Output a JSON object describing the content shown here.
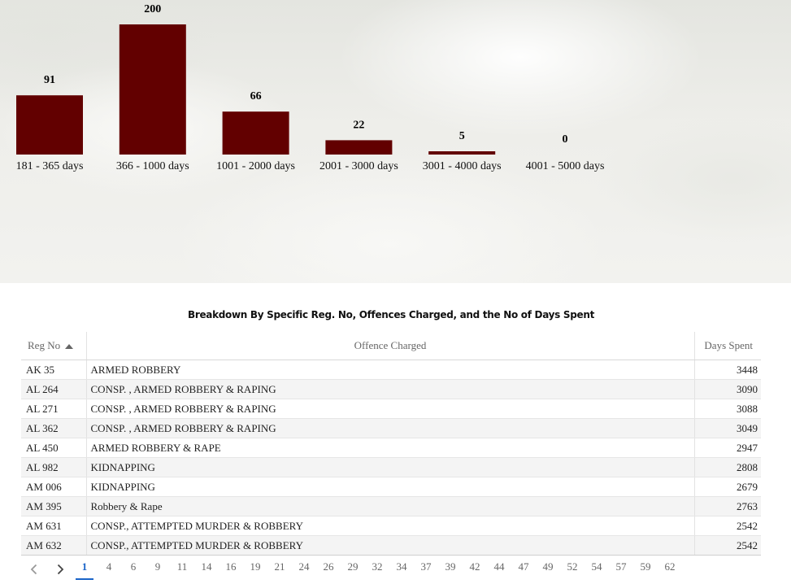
{
  "chart_data": {
    "type": "bar",
    "categories": [
      "181 - 365 days",
      "366 - 1000 days",
      "1001 - 2000 days",
      "2001 - 3000 days",
      "3001 - 4000 days",
      "4001 - 5000 days"
    ],
    "values": [
      91,
      200,
      66,
      22,
      5,
      0
    ],
    "ylim": [
      0,
      200
    ],
    "bar_color": "#620000",
    "grid": false,
    "legend": "none"
  },
  "table": {
    "title": "Breakdown By Specific Reg. No, Offences Charged, and the No of Days Spent",
    "headers": {
      "reg_no": "Reg No",
      "offence": "Offence Charged",
      "days": "Days Spent"
    },
    "sort": "Reg No ascending",
    "rows": [
      {
        "reg_no": "AK 35",
        "offence": "ARMED ROBBERY",
        "days": "3448"
      },
      {
        "reg_no": "AL 264",
        "offence": "CONSP. , ARMED ROBBERY & RAPING",
        "days": "3090"
      },
      {
        "reg_no": "AL 271",
        "offence": "CONSP. , ARMED ROBBERY & RAPING",
        "days": "3088"
      },
      {
        "reg_no": "AL 362",
        "offence": "CONSP. , ARMED ROBBERY & RAPING",
        "days": "3049"
      },
      {
        "reg_no": "AL 450",
        "offence": "ARMED ROBBERY & RAPE",
        "days": "2947"
      },
      {
        "reg_no": "AL 982",
        "offence": "KIDNAPPING",
        "days": "2808"
      },
      {
        "reg_no": "AM 006",
        "offence": "KIDNAPPING",
        "days": "2679"
      },
      {
        "reg_no": "AM 395",
        "offence": "Robbery & Rape",
        "days": "2763"
      },
      {
        "reg_no": "AM 631",
        "offence": "CONSP., ATTEMPTED MURDER & ROBBERY",
        "days": "2542"
      },
      {
        "reg_no": "AM 632",
        "offence": "CONSP., ATTEMPTED MURDER & ROBBERY",
        "days": "2542"
      }
    ]
  },
  "pagination": {
    "pages": [
      "1",
      "4",
      "6",
      "9",
      "11",
      "14",
      "16",
      "19",
      "21",
      "24",
      "26",
      "29",
      "32",
      "34",
      "37",
      "39",
      "42",
      "44",
      "47",
      "49",
      "52",
      "54",
      "57",
      "59",
      "62"
    ],
    "active": "1",
    "prev_icon": "chevron-left-icon",
    "next_icon": "chevron-right-icon",
    "accent_color": "#1a64c8"
  }
}
